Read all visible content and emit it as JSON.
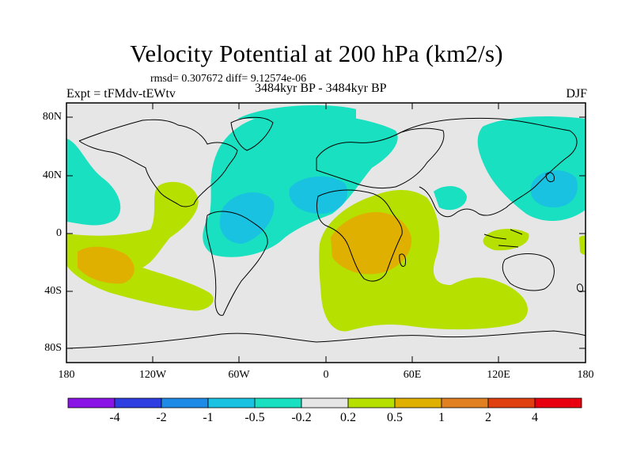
{
  "title": "Velocity Potential at 200 hPa (km2/s)",
  "stats": "rmsd= 0.307672 diff= 9.12574e-06",
  "left_label": "Expt = tFMdv-tEWtv",
  "center_label": "3484kyr BP - 3484kyr BP",
  "right_label": "DJF",
  "y_ticks": [
    "80N",
    "40N",
    "0",
    "40S",
    "80S"
  ],
  "x_ticks": [
    "180",
    "120W",
    "60W",
    "0",
    "60E",
    "120E",
    "180"
  ],
  "colorbar": {
    "labels": [
      "-4",
      "-2",
      "-1",
      "-0.5",
      "-0.2",
      "0.2",
      "0.5",
      "1",
      "2",
      "4"
    ],
    "colors": [
      "#8a14e6",
      "#2e3ee0",
      "#1e8ae8",
      "#19c2e0",
      "#18e0c0",
      "#e6e6e6",
      "#b6e000",
      "#e0b000",
      "#e08020",
      "#e04010",
      "#e80010"
    ]
  },
  "fill_colors": {
    "neg_weak": "#18e0c0",
    "neg_mid": "#19c2e0",
    "pos_weak": "#b6e000",
    "pos_mid": "#e0b000",
    "neutral": "#e6e6e6"
  }
}
